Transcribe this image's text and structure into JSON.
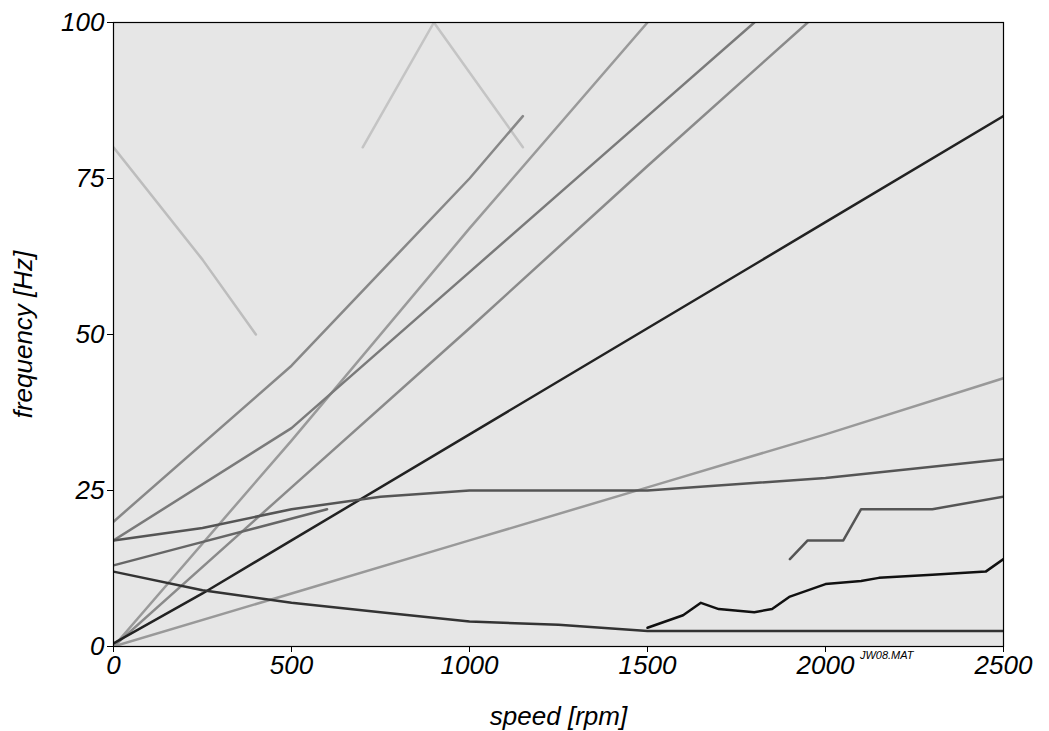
{
  "chart_data": {
    "type": "line",
    "x_label": "speed [rpm]",
    "y_label": "frequency [Hz]",
    "annotation": "JW08.MAT",
    "xlim": [
      0,
      2500
    ],
    "ylim": [
      0,
      100
    ],
    "xticks": [
      0,
      500,
      1000,
      1500,
      2000,
      2500
    ],
    "yticks": [
      0,
      25,
      50,
      75,
      100
    ],
    "series": [
      {
        "color": "#bdbdbd",
        "x": [
          0,
          250,
          400
        ],
        "values": [
          80,
          62,
          50
        ]
      },
      {
        "color": "#c4c4c4",
        "x": [
          700,
          900,
          1150
        ],
        "values": [
          80,
          100,
          80
        ]
      },
      {
        "color": "#9a9a9a",
        "x": [
          0,
          500,
          1000,
          1500
        ],
        "values": [
          0,
          33,
          67,
          100
        ]
      },
      {
        "color": "#8a8a8a",
        "x": [
          0,
          500,
          1000,
          1500,
          1950
        ],
        "values": [
          0,
          25.5,
          51,
          77,
          100
        ]
      },
      {
        "color": "#7a7a7a",
        "x": [
          0,
          500,
          1000,
          1500,
          1800
        ],
        "values": [
          17,
          35,
          60,
          85,
          100
        ]
      },
      {
        "color": "#888888",
        "x": [
          0,
          500,
          1000,
          1150
        ],
        "values": [
          20,
          45,
          75,
          85
        ]
      },
      {
        "color": "#999999",
        "x": [
          0,
          500,
          1000,
          1500,
          2000,
          2500
        ],
        "values": [
          0,
          8.5,
          17,
          25.5,
          34,
          43
        ]
      },
      {
        "color": "#222222",
        "x": [
          0,
          250,
          500,
          1000,
          1500,
          2000,
          2500
        ],
        "values": [
          0.5,
          8.5,
          17,
          34,
          51,
          68,
          85
        ]
      },
      {
        "color": "#555555",
        "x": [
          0,
          250,
          500,
          750,
          1000,
          1500,
          2000,
          2500
        ],
        "values": [
          17,
          19,
          22,
          24,
          25,
          25,
          27,
          30
        ]
      },
      {
        "color": "#666666",
        "x": [
          0,
          200,
          400,
          600
        ],
        "values": [
          13,
          16,
          19,
          22
        ]
      },
      {
        "color": "#333333",
        "x": [
          0,
          250,
          500,
          750,
          1000,
          1250,
          1500,
          2000,
          2500
        ],
        "values": [
          12,
          9,
          7,
          5.5,
          4,
          3.5,
          2.5,
          2.5,
          2.5
        ]
      },
      {
        "color": "#111111",
        "x": [
          1500,
          1600,
          1650,
          1700,
          1800,
          1850,
          1900,
          1950,
          2000,
          2100,
          2150,
          2300,
          2450,
          2500
        ],
        "values": [
          3,
          5,
          7,
          6,
          5.5,
          6,
          8,
          9,
          10,
          10.5,
          11,
          11.5,
          12,
          14
        ]
      },
      {
        "color": "#555555",
        "x": [
          1900,
          1950,
          2050,
          2100,
          2300,
          2500
        ],
        "values": [
          14,
          17,
          17,
          22,
          22,
          24
        ]
      }
    ]
  }
}
